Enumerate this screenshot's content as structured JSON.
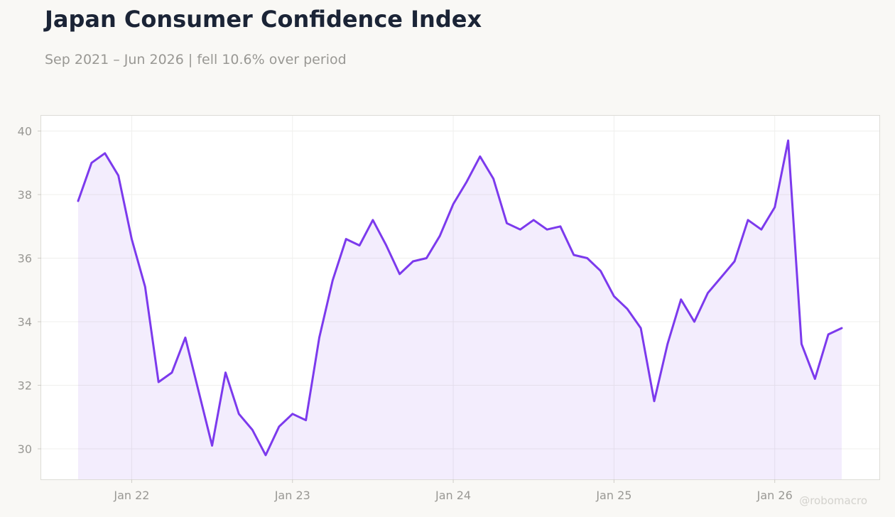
{
  "chart_data": {
    "type": "area",
    "title": "Japan Consumer Confidence Index",
    "subtitle": "Sep 2021 – Jun 2026 | fell 10.6% over period",
    "xlabel": "",
    "ylabel": "",
    "ylim": [
      29,
      40.5
    ],
    "y_ticks": [
      30,
      32,
      34,
      36,
      38,
      40
    ],
    "x_ticks": [
      {
        "label": "Jan 22",
        "date": "2022-01"
      },
      {
        "label": "Jan 23",
        "date": "2023-01"
      },
      {
        "label": "Jan 24",
        "date": "2024-01"
      },
      {
        "label": "Jan 25",
        "date": "2025-01"
      },
      {
        "label": "Jan 26",
        "date": "2026-01"
      }
    ],
    "grid": true,
    "x": [
      "2021-09",
      "2021-10",
      "2021-11",
      "2021-12",
      "2022-01",
      "2022-02",
      "2022-03",
      "2022-04",
      "2022-05",
      "2022-06",
      "2022-07",
      "2022-08",
      "2022-09",
      "2022-10",
      "2022-11",
      "2022-12",
      "2023-01",
      "2023-02",
      "2023-03",
      "2023-04",
      "2023-05",
      "2023-06",
      "2023-07",
      "2023-08",
      "2023-09",
      "2023-10",
      "2023-11",
      "2023-12",
      "2024-01",
      "2024-02",
      "2024-03",
      "2024-04",
      "2024-05",
      "2024-06",
      "2024-07",
      "2024-08",
      "2024-09",
      "2024-10",
      "2024-11",
      "2024-12",
      "2025-01",
      "2025-02",
      "2025-03",
      "2025-04",
      "2025-05",
      "2025-06",
      "2025-07",
      "2025-08",
      "2025-09",
      "2025-10",
      "2025-11",
      "2025-12",
      "2026-01",
      "2026-02",
      "2026-03",
      "2026-04",
      "2026-05",
      "2026-06"
    ],
    "series": [
      {
        "values": [
          37.8,
          39.0,
          39.3,
          38.6,
          36.6,
          35.1,
          32.1,
          32.4,
          33.5,
          31.8,
          30.1,
          32.4,
          31.1,
          30.6,
          29.8,
          30.7,
          31.1,
          30.9,
          33.5,
          35.3,
          36.6,
          36.4,
          37.2,
          36.4,
          35.5,
          35.9,
          36.0,
          36.7,
          37.7,
          38.4,
          39.2,
          38.5,
          37.1,
          36.9,
          37.2,
          36.9,
          37.0,
          36.1,
          36.0,
          35.6,
          34.8,
          34.4,
          33.8,
          31.5,
          33.3,
          34.7,
          34.0,
          34.9,
          35.4,
          35.9,
          37.2,
          36.9,
          37.6,
          39.7,
          33.3,
          32.2,
          33.6,
          33.8
        ]
      }
    ],
    "colors": {
      "line": "#7c3aed",
      "fill": "#ede7fb"
    }
  },
  "watermark": "@robomacro"
}
